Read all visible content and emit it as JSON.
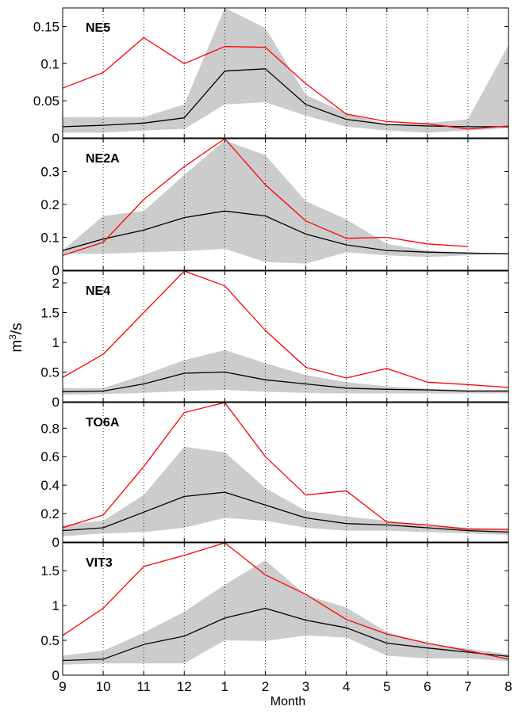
{
  "figure": {
    "xlabel": "Month",
    "ylabel_base": "m",
    "ylabel_exp": "3",
    "ylabel_tail": "/s"
  },
  "colors": {
    "median": "#000000",
    "observed": "#ff0000",
    "band": "#cccccc"
  },
  "chart_data": [
    {
      "type": "area",
      "title": "NE5",
      "xlabel": "Month",
      "ylabel": "m3/s",
      "x": [
        "9",
        "10",
        "11",
        "12",
        "1",
        "2",
        "3",
        "4",
        "5",
        "6",
        "7",
        "8"
      ],
      "ylim": [
        0,
        0.175
      ],
      "yticks": [
        0,
        0.05,
        0.1,
        0.15
      ],
      "ytick_labels": [
        "0",
        "0.05",
        "0.1",
        "0.15"
      ],
      "grid": "vertical-dotted",
      "series": [
        {
          "role": "band_upper",
          "values": [
            0.028,
            0.028,
            0.028,
            0.045,
            0.175,
            0.148,
            0.058,
            0.033,
            0.018,
            0.02,
            0.025,
            0.125
          ]
        },
        {
          "role": "band_lower",
          "values": [
            0.007,
            0.007,
            0.01,
            0.012,
            0.045,
            0.048,
            0.03,
            0.015,
            0.01,
            0.007,
            0.01,
            0.013
          ]
        },
        {
          "role": "median",
          "values": [
            0.015,
            0.017,
            0.02,
            0.027,
            0.09,
            0.093,
            0.045,
            0.025,
            0.018,
            0.016,
            0.015,
            0.015
          ]
        },
        {
          "role": "observed",
          "values": [
            0.067,
            0.088,
            0.135,
            0.1,
            0.123,
            0.122,
            0.073,
            0.032,
            0.022,
            0.019,
            0.012,
            0.016
          ]
        }
      ]
    },
    {
      "type": "area",
      "title": "NE2A",
      "xlabel": "Month",
      "ylabel": "m3/s",
      "x": [
        "9",
        "10",
        "11",
        "12",
        "1",
        "2",
        "3",
        "4",
        "5",
        "6",
        "7",
        "8"
      ],
      "ylim": [
        0,
        0.4
      ],
      "yticks": [
        0,
        0.1,
        0.2,
        0.3
      ],
      "ytick_labels": [
        "0",
        "0.1",
        "0.2",
        "0.3"
      ],
      "grid": "vertical-dotted",
      "series": [
        {
          "role": "band_upper",
          "values": [
            0.06,
            0.165,
            0.18,
            0.29,
            0.395,
            0.35,
            0.21,
            0.155,
            0.08,
            0.06,
            0.055,
            0.05
          ]
        },
        {
          "role": "band_lower",
          "values": [
            0.05,
            0.05,
            0.055,
            0.058,
            0.065,
            0.025,
            0.02,
            0.055,
            0.045,
            0.04,
            0.045,
            0.05
          ]
        },
        {
          "role": "median",
          "values": [
            0.06,
            0.095,
            0.122,
            0.16,
            0.18,
            0.165,
            0.11,
            0.077,
            0.06,
            0.055,
            0.052,
            0.05
          ]
        },
        {
          "role": "observed",
          "values": [
            0.045,
            0.085,
            0.215,
            0.315,
            0.4,
            0.26,
            0.15,
            0.097,
            0.1,
            0.08,
            0.072,
            null
          ]
        }
      ]
    },
    {
      "type": "area",
      "title": "NE4",
      "xlabel": "Month",
      "ylabel": "m3/s",
      "x": [
        "9",
        "10",
        "11",
        "12",
        "1",
        "2",
        "3",
        "4",
        "5",
        "6",
        "7",
        "8"
      ],
      "ylim": [
        0,
        2.2
      ],
      "yticks": [
        0,
        0.5,
        1,
        1.5,
        2
      ],
      "ytick_labels": [
        "0",
        "0.5",
        "1",
        "1.5",
        "2"
      ],
      "grid": "vertical-dotted",
      "series": [
        {
          "role": "band_upper",
          "values": [
            0.23,
            0.23,
            0.45,
            0.7,
            0.87,
            0.65,
            0.45,
            0.33,
            0.26,
            0.22,
            0.2,
            0.2
          ]
        },
        {
          "role": "band_lower",
          "values": [
            0.12,
            0.13,
            0.15,
            0.18,
            0.2,
            0.17,
            0.15,
            0.14,
            0.14,
            0.14,
            0.14,
            0.14
          ]
        },
        {
          "role": "median",
          "values": [
            0.17,
            0.18,
            0.3,
            0.48,
            0.5,
            0.37,
            0.3,
            0.23,
            0.21,
            0.2,
            0.18,
            0.18
          ]
        },
        {
          "role": "observed",
          "values": [
            0.41,
            0.8,
            1.5,
            2.2,
            1.95,
            1.2,
            0.58,
            0.4,
            0.56,
            0.33,
            0.29,
            0.24
          ]
        }
      ]
    },
    {
      "type": "area",
      "title": "TO6A",
      "xlabel": "Month",
      "ylabel": "m3/s",
      "x": [
        "9",
        "10",
        "11",
        "12",
        "1",
        "2",
        "3",
        "4",
        "5",
        "6",
        "7",
        "8"
      ],
      "ylim": [
        0,
        0.98
      ],
      "yticks": [
        0,
        0.2,
        0.4,
        0.6,
        0.8
      ],
      "ytick_labels": [
        "0",
        "0.2",
        "0.4",
        "0.6",
        "0.8"
      ],
      "grid": "vertical-dotted",
      "series": [
        {
          "role": "band_upper",
          "values": [
            0.12,
            0.15,
            0.33,
            0.67,
            0.63,
            0.38,
            0.22,
            0.18,
            0.15,
            0.12,
            0.1,
            0.09
          ]
        },
        {
          "role": "band_lower",
          "values": [
            0.04,
            0.06,
            0.07,
            0.1,
            0.17,
            0.15,
            0.1,
            0.08,
            0.08,
            0.07,
            0.06,
            0.05
          ]
        },
        {
          "role": "median",
          "values": [
            0.08,
            0.1,
            0.21,
            0.32,
            0.35,
            0.26,
            0.17,
            0.13,
            0.12,
            0.1,
            0.08,
            0.07
          ]
        },
        {
          "role": "observed",
          "values": [
            0.1,
            0.19,
            0.53,
            0.91,
            0.98,
            0.6,
            0.33,
            0.36,
            0.14,
            0.12,
            0.09,
            0.09
          ]
        }
      ]
    },
    {
      "type": "area",
      "title": "VIT3",
      "xlabel": "Month",
      "ylabel": "m3/s",
      "x": [
        "9",
        "10",
        "11",
        "12",
        "1",
        "2",
        "3",
        "4",
        "5",
        "6",
        "7",
        "8"
      ],
      "ylim": [
        0,
        1.9
      ],
      "yticks": [
        0,
        0.5,
        1,
        1.5
      ],
      "ytick_labels": [
        "0",
        "0.5",
        "1",
        "1.5"
      ],
      "xticks": [
        "9",
        "10",
        "11",
        "12",
        "1",
        "2",
        "3",
        "4",
        "5",
        "6",
        "7",
        "8"
      ],
      "grid": "vertical-dotted",
      "series": [
        {
          "role": "band_upper",
          "values": [
            0.28,
            0.35,
            0.61,
            0.91,
            1.3,
            1.65,
            1.15,
            0.97,
            0.62,
            0.45,
            0.38,
            0.3
          ]
        },
        {
          "role": "band_lower",
          "values": [
            0.15,
            0.17,
            0.17,
            0.17,
            0.5,
            0.49,
            0.57,
            0.54,
            0.28,
            0.24,
            0.24,
            0.2
          ]
        },
        {
          "role": "median",
          "values": [
            0.21,
            0.23,
            0.44,
            0.56,
            0.82,
            0.96,
            0.79,
            0.68,
            0.46,
            0.39,
            0.33,
            0.27
          ]
        },
        {
          "role": "observed",
          "values": [
            0.57,
            0.96,
            1.56,
            1.72,
            1.9,
            1.44,
            1.16,
            0.8,
            0.59,
            0.46,
            0.35,
            0.23
          ]
        }
      ]
    }
  ]
}
